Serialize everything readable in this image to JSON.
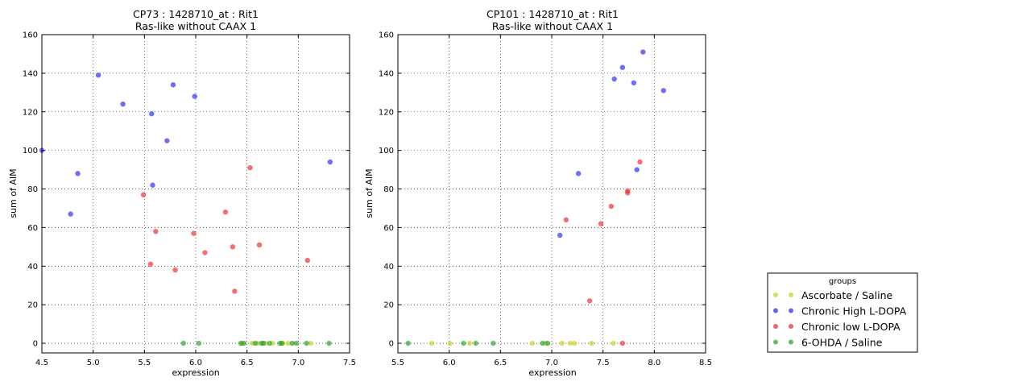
{
  "figure": {
    "legend": {
      "title": "groups",
      "placement": "right",
      "entries": [
        {
          "label": "Ascorbate / Saline",
          "color": "#cccc22"
        },
        {
          "label": "Chronic High L-DOPA",
          "color": "#2222ee"
        },
        {
          "label": "Chronic low L-DOPA",
          "color": "#ee2222"
        },
        {
          "label": "6-OHDA / Saline",
          "color": "#22a022"
        }
      ]
    }
  },
  "chart_data": [
    {
      "type": "scatter",
      "title": "CP73 : 1428710_at : Rit1",
      "subtitle": "Ras-like without CAAX 1",
      "xlabel": "expression",
      "ylabel": "sum of AIM",
      "xlim": [
        4.5,
        7.5
      ],
      "ylim": [
        -5,
        160
      ],
      "xticks": [
        "4.5",
        "5.0",
        "5.5",
        "6.0",
        "6.5",
        "7.0",
        "7.5"
      ],
      "yticks": [
        "0",
        "20",
        "40",
        "60",
        "80",
        "100",
        "120",
        "140",
        "160"
      ],
      "grid": true,
      "series": [
        {
          "name": "Ascorbate / Saline",
          "color": "#cccc22",
          "x": [
            6.45,
            6.55,
            6.6,
            6.68,
            6.75,
            6.85,
            6.9,
            7.12
          ],
          "y": [
            0,
            0,
            0,
            0,
            0,
            0,
            0,
            0
          ]
        },
        {
          "name": "Chronic High L-DOPA",
          "color": "#2222ee",
          "x": [
            4.5,
            4.78,
            4.85,
            5.05,
            5.29,
            5.57,
            5.58,
            5.72,
            5.78,
            5.99,
            7.31
          ],
          "y": [
            100,
            67,
            88,
            139,
            124,
            119,
            82,
            105,
            134,
            128,
            94
          ]
        },
        {
          "name": "Chronic low L-DOPA",
          "color": "#ee2222",
          "x": [
            5.49,
            5.56,
            5.61,
            5.8,
            5.98,
            6.09,
            6.29,
            6.36,
            6.38,
            6.53,
            6.62,
            7.09
          ],
          "y": [
            77,
            41,
            58,
            38,
            57,
            47,
            68,
            50,
            27,
            91,
            51,
            43
          ]
        },
        {
          "name": "6-OHDA / Saline",
          "color": "#22a022",
          "x": [
            5.88,
            6.03,
            6.44,
            6.47,
            6.58,
            6.64,
            6.66,
            6.72,
            6.82,
            6.84,
            6.94,
            6.98,
            7.08,
            7.3
          ],
          "y": [
            0,
            0,
            0,
            0,
            0,
            0,
            0,
            0,
            0,
            0,
            0,
            0,
            0,
            0
          ]
        }
      ]
    },
    {
      "type": "scatter",
      "title": "CP101 : 1428710_at : Rit1",
      "subtitle": "Ras-like without CAAX 1",
      "xlabel": "expression",
      "ylabel": "sum of AIM",
      "xlim": [
        5.5,
        8.5
      ],
      "ylim": [
        -5,
        160
      ],
      "xticks": [
        "5.5",
        "6.0",
        "6.5",
        "7.0",
        "7.5",
        "8.0",
        "8.5"
      ],
      "yticks": [
        "0",
        "20",
        "40",
        "60",
        "80",
        "100",
        "120",
        "140",
        "160"
      ],
      "grid": true,
      "series": [
        {
          "name": "Ascorbate / Saline",
          "color": "#cccc22",
          "x": [
            5.83,
            6.01,
            6.2,
            6.81,
            6.94,
            7.1,
            7.18,
            7.22,
            7.39,
            7.6
          ],
          "y": [
            0,
            0,
            0,
            0,
            0,
            0,
            0,
            0,
            0,
            0
          ]
        },
        {
          "name": "Chronic High L-DOPA",
          "color": "#2222ee",
          "x": [
            7.08,
            7.26,
            7.61,
            7.69,
            7.8,
            7.83,
            7.89,
            8.09
          ],
          "y": [
            56,
            88,
            137,
            143,
            135,
            90,
            151,
            131
          ]
        },
        {
          "name": "Chronic low L-DOPA",
          "color": "#ee2222",
          "x": [
            7.14,
            7.37,
            7.48,
            7.58,
            7.69,
            7.74,
            7.74,
            7.86
          ],
          "y": [
            64,
            22,
            62,
            71,
            0,
            79,
            78,
            94
          ]
        },
        {
          "name": "6-OHDA / Saline",
          "color": "#22a022",
          "x": [
            5.6,
            6.14,
            6.26,
            6.43,
            6.91,
            6.96
          ],
          "y": [
            0,
            0,
            0,
            0,
            0,
            0
          ]
        }
      ]
    }
  ]
}
